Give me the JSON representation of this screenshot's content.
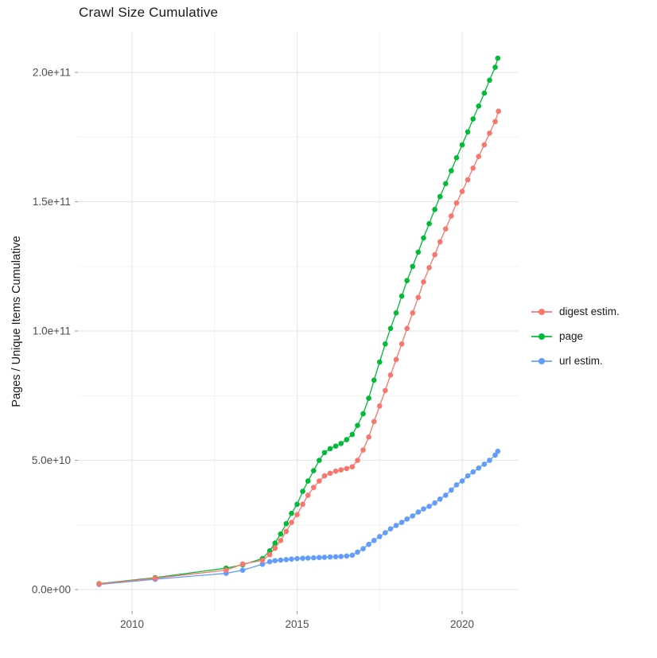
{
  "chart": {
    "title": "Crawl Size Cumulative",
    "y_axis_title": "Pages / Unique Items Cumulative",
    "background_color": "#ffffff",
    "major_gridline_color": "#e7e7e7",
    "minor_gridline_color": "#f1f1f1",
    "axis_text_color": "#4d4d4d",
    "legend": {
      "position": "right",
      "items": [
        "digest estim.",
        "page",
        "url estim."
      ]
    }
  },
  "chart_data": {
    "type": "scatter",
    "title": "Crawl Size Cumulative",
    "xlabel": "",
    "ylabel": "Pages / Unique Items Cumulative",
    "xlim": [
      2008.36,
      2021.71
    ],
    "ylim": [
      -8300000000.0,
      215700000000.0
    ],
    "grid": "on",
    "legend_position": "right",
    "x_ticks": [
      {
        "value": 2010,
        "label": "2010"
      },
      {
        "value": 2015,
        "label": "2015"
      },
      {
        "value": 2020,
        "label": "2020"
      }
    ],
    "x_minor_ticks": [
      2012.5,
      2017.5
    ],
    "y_ticks": [
      {
        "value": 0,
        "label": "0.0e+00"
      },
      {
        "value": 50000000000.0,
        "label": "5.0e+10"
      },
      {
        "value": 100000000000.0,
        "label": "1.0e+11"
      },
      {
        "value": 150000000000.0,
        "label": "1.5e+11"
      },
      {
        "value": 200000000000.0,
        "label": "2.0e+11"
      }
    ],
    "y_minor_ticks": [
      25000000000.0,
      75000000000.0,
      125000000000.0,
      175000000000.0
    ],
    "series": [
      {
        "name": "digest estim.",
        "color": "#F8766D",
        "points": [
          [
            2009.0,
            2200000000.0
          ],
          [
            2010.7,
            4400000000.0
          ],
          [
            2012.85,
            7500000000.0
          ],
          [
            2013.35,
            9900000000.0
          ],
          [
            2013.95,
            11300000000.0
          ],
          [
            2014.17,
            13500000000.0
          ],
          [
            2014.33,
            16000000000.0
          ],
          [
            2014.5,
            19000000000.0
          ],
          [
            2014.67,
            22500000000.0
          ],
          [
            2014.83,
            26000000000.0
          ],
          [
            2015.0,
            29000000000.0
          ],
          [
            2015.17,
            33000000000.0
          ],
          [
            2015.33,
            36500000000.0
          ],
          [
            2015.5,
            39500000000.0
          ],
          [
            2015.67,
            42000000000.0
          ],
          [
            2015.83,
            44000000000.0
          ],
          [
            2016.0,
            45000000000.0
          ],
          [
            2016.17,
            45800000000.0
          ],
          [
            2016.33,
            46300000000.0
          ],
          [
            2016.5,
            46800000000.0
          ],
          [
            2016.67,
            47500000000.0
          ],
          [
            2016.83,
            50000000000.0
          ],
          [
            2017.0,
            54000000000.0
          ],
          [
            2017.17,
            59000000000.0
          ],
          [
            2017.33,
            65000000000.0
          ],
          [
            2017.5,
            71000000000.0
          ],
          [
            2017.67,
            77000000000.0
          ],
          [
            2017.83,
            83000000000.0
          ],
          [
            2018.0,
            89000000000.0
          ],
          [
            2018.17,
            95000000000.0
          ],
          [
            2018.33,
            101000000000.0
          ],
          [
            2018.5,
            107000000000.0
          ],
          [
            2018.67,
            113000000000.0
          ],
          [
            2018.83,
            119000000000.0
          ],
          [
            2019.0,
            124500000000.0
          ],
          [
            2019.17,
            129500000000.0
          ],
          [
            2019.33,
            134500000000.0
          ],
          [
            2019.5,
            139500000000.0
          ],
          [
            2019.67,
            144500000000.0
          ],
          [
            2019.83,
            149500000000.0
          ],
          [
            2020.0,
            154000000000.0
          ],
          [
            2020.17,
            158500000000.0
          ],
          [
            2020.33,
            163000000000.0
          ],
          [
            2020.5,
            167500000000.0
          ],
          [
            2020.67,
            172000000000.0
          ],
          [
            2020.83,
            176500000000.0
          ],
          [
            2021.0,
            181000000000.0
          ],
          [
            2021.1,
            185000000000.0
          ]
        ]
      },
      {
        "name": "page",
        "color": "#00BA38",
        "points": [
          [
            2009.0,
            2300000000.0
          ],
          [
            2010.7,
            4600000000.0
          ],
          [
            2012.85,
            8300000000.0
          ],
          [
            2013.35,
            9600000000.0
          ],
          [
            2013.95,
            12000000000.0
          ],
          [
            2014.17,
            15000000000.0
          ],
          [
            2014.33,
            18000000000.0
          ],
          [
            2014.5,
            21500000000.0
          ],
          [
            2014.67,
            25500000000.0
          ],
          [
            2014.83,
            29500000000.0
          ],
          [
            2015.0,
            33000000000.0
          ],
          [
            2015.17,
            38000000000.0
          ],
          [
            2015.33,
            42000000000.0
          ],
          [
            2015.5,
            46000000000.0
          ],
          [
            2015.67,
            50000000000.0
          ],
          [
            2015.83,
            53000000000.0
          ],
          [
            2016.0,
            54500000000.0
          ],
          [
            2016.17,
            55500000000.0
          ],
          [
            2016.33,
            56500000000.0
          ],
          [
            2016.5,
            58000000000.0
          ],
          [
            2016.67,
            60000000000.0
          ],
          [
            2016.83,
            63500000000.0
          ],
          [
            2017.0,
            68000000000.0
          ],
          [
            2017.17,
            74000000000.0
          ],
          [
            2017.33,
            81000000000.0
          ],
          [
            2017.5,
            88000000000.0
          ],
          [
            2017.67,
            95000000000.0
          ],
          [
            2017.83,
            101000000000.0
          ],
          [
            2018.0,
            107000000000.0
          ],
          [
            2018.17,
            113500000000.0
          ],
          [
            2018.33,
            119500000000.0
          ],
          [
            2018.5,
            125000000000.0
          ],
          [
            2018.67,
            130500000000.0
          ],
          [
            2018.83,
            136000000000.0
          ],
          [
            2019.0,
            141500000000.0
          ],
          [
            2019.17,
            147000000000.0
          ],
          [
            2019.33,
            152000000000.0
          ],
          [
            2019.5,
            157000000000.0
          ],
          [
            2019.67,
            162000000000.0
          ],
          [
            2019.83,
            167000000000.0
          ],
          [
            2020.0,
            172000000000.0
          ],
          [
            2020.17,
            177000000000.0
          ],
          [
            2020.33,
            182000000000.0
          ],
          [
            2020.5,
            187000000000.0
          ],
          [
            2020.67,
            192000000000.0
          ],
          [
            2020.83,
            197000000000.0
          ],
          [
            2021.0,
            202000000000.0
          ],
          [
            2021.08,
            205500000000.0
          ]
        ]
      },
      {
        "name": "url estim.",
        "color": "#619CFF",
        "points": [
          [
            2009.0,
            2000000000.0
          ],
          [
            2010.7,
            4000000000.0
          ],
          [
            2012.85,
            6300000000.0
          ],
          [
            2013.35,
            7500000000.0
          ],
          [
            2013.95,
            9800000000.0
          ],
          [
            2014.17,
            10800000000.0
          ],
          [
            2014.33,
            11200000000.0
          ],
          [
            2014.5,
            11400000000.0
          ],
          [
            2014.67,
            11600000000.0
          ],
          [
            2014.83,
            11800000000.0
          ],
          [
            2015.0,
            12000000000.0
          ],
          [
            2015.17,
            12100000000.0
          ],
          [
            2015.33,
            12200000000.0
          ],
          [
            2015.5,
            12300000000.0
          ],
          [
            2015.67,
            12400000000.0
          ],
          [
            2015.83,
            12500000000.0
          ],
          [
            2016.0,
            12600000000.0
          ],
          [
            2016.17,
            12700000000.0
          ],
          [
            2016.33,
            12800000000.0
          ],
          [
            2016.5,
            13000000000.0
          ],
          [
            2016.67,
            13300000000.0
          ],
          [
            2016.83,
            14500000000.0
          ],
          [
            2017.0,
            15800000000.0
          ],
          [
            2017.17,
            17500000000.0
          ],
          [
            2017.33,
            19000000000.0
          ],
          [
            2017.5,
            20500000000.0
          ],
          [
            2017.67,
            22000000000.0
          ],
          [
            2017.83,
            23500000000.0
          ],
          [
            2018.0,
            24800000000.0
          ],
          [
            2018.17,
            26000000000.0
          ],
          [
            2018.33,
            27300000000.0
          ],
          [
            2018.5,
            28500000000.0
          ],
          [
            2018.67,
            30000000000.0
          ],
          [
            2018.83,
            31200000000.0
          ],
          [
            2019.0,
            32200000000.0
          ],
          [
            2019.17,
            33500000000.0
          ],
          [
            2019.33,
            35000000000.0
          ],
          [
            2019.5,
            36500000000.0
          ],
          [
            2019.67,
            38500000000.0
          ],
          [
            2019.83,
            40500000000.0
          ],
          [
            2020.0,
            42000000000.0
          ],
          [
            2020.17,
            44000000000.0
          ],
          [
            2020.33,
            45500000000.0
          ],
          [
            2020.5,
            47000000000.0
          ],
          [
            2020.67,
            48500000000.0
          ],
          [
            2020.83,
            50000000000.0
          ],
          [
            2021.0,
            52000000000.0
          ],
          [
            2021.08,
            53500000000.0
          ]
        ]
      }
    ]
  }
}
